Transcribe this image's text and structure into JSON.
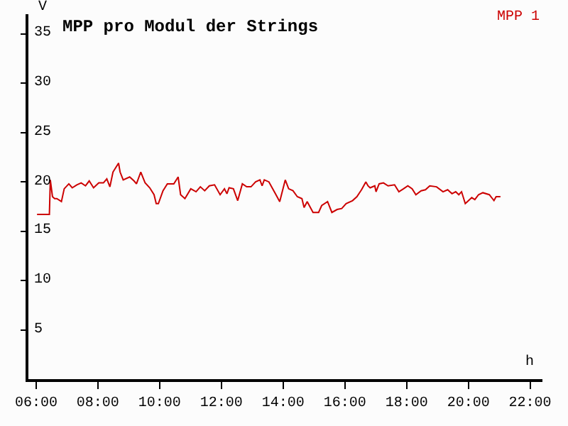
{
  "chart_data": {
    "type": "line",
    "title": "MPP pro Modul der Strings",
    "xlabel": "h",
    "ylabel": "V",
    "xlim": [
      5.75,
      22.4
    ],
    "ylim": [
      0,
      37
    ],
    "xticks": [
      {
        "value": 6,
        "label": "06:00"
      },
      {
        "value": 8,
        "label": "08:00"
      },
      {
        "value": 10,
        "label": "10:00"
      },
      {
        "value": 12,
        "label": "12:00"
      },
      {
        "value": 14,
        "label": "14:00"
      },
      {
        "value": 16,
        "label": "16:00"
      },
      {
        "value": 18,
        "label": "18:00"
      },
      {
        "value": 20,
        "label": "20:00"
      },
      {
        "value": 22,
        "label": "22:00"
      }
    ],
    "yticks": [
      5,
      10,
      15,
      20,
      25,
      30,
      35
    ],
    "legend": "top right",
    "marker": "none",
    "line_style": "solid",
    "series": [
      {
        "name": "MPP 1",
        "color": "#cc0000",
        "x": [
          6.03,
          6.43,
          6.46,
          6.53,
          6.6,
          6.67,
          6.82,
          6.91,
          7.06,
          7.17,
          7.32,
          7.46,
          7.6,
          7.72,
          7.86,
          8.03,
          8.18,
          8.29,
          8.39,
          8.49,
          8.57,
          8.67,
          8.72,
          8.82,
          9.03,
          9.17,
          9.25,
          9.39,
          9.53,
          9.68,
          9.82,
          9.89,
          9.96,
          10.11,
          10.25,
          10.46,
          10.6,
          10.68,
          10.82,
          11.01,
          11.18,
          11.32,
          11.46,
          11.61,
          11.78,
          11.96,
          12.1,
          12.18,
          12.25,
          12.39,
          12.53,
          12.68,
          12.82,
          12.96,
          13.11,
          13.25,
          13.32,
          13.39,
          13.54,
          13.75,
          13.89,
          14.07,
          14.18,
          14.32,
          14.46,
          14.61,
          14.68,
          14.78,
          14.97,
          15.15,
          15.25,
          15.44,
          15.58,
          15.75,
          15.9,
          16.04,
          16.25,
          16.39,
          16.54,
          16.68,
          16.75,
          16.82,
          16.97,
          17.01,
          17.11,
          17.25,
          17.4,
          17.61,
          17.75,
          17.9,
          18.04,
          18.18,
          18.3,
          18.47,
          18.61,
          18.75,
          18.97,
          19.18,
          19.33,
          19.47,
          19.59,
          19.69,
          19.78,
          19.9,
          19.97,
          20.11,
          20.21,
          20.33,
          20.47,
          20.68,
          20.83,
          20.9,
          21.04
        ],
        "values": [
          16.7,
          16.7,
          20.2,
          18.5,
          18.3,
          18.3,
          18.0,
          19.3,
          19.8,
          19.4,
          19.7,
          19.9,
          19.6,
          20.1,
          19.4,
          19.9,
          19.9,
          20.3,
          19.5,
          21.0,
          21.4,
          21.9,
          21.0,
          20.2,
          20.5,
          20.1,
          19.8,
          21.0,
          19.9,
          19.4,
          18.7,
          17.8,
          17.8,
          19.1,
          19.8,
          19.8,
          20.5,
          18.7,
          18.3,
          19.3,
          19.0,
          19.5,
          19.1,
          19.6,
          19.7,
          18.7,
          19.3,
          18.8,
          19.4,
          19.3,
          18.1,
          19.8,
          19.5,
          19.5,
          20.0,
          20.2,
          19.6,
          20.2,
          20.0,
          18.8,
          18.0,
          20.2,
          19.3,
          19.1,
          18.5,
          18.3,
          17.4,
          18.0,
          16.9,
          16.9,
          17.6,
          18.0,
          16.9,
          17.2,
          17.3,
          17.8,
          18.1,
          18.5,
          19.2,
          20.0,
          19.6,
          19.4,
          19.6,
          19.0,
          19.8,
          19.9,
          19.6,
          19.7,
          19.0,
          19.3,
          19.6,
          19.3,
          18.7,
          19.1,
          19.2,
          19.6,
          19.5,
          19.0,
          19.2,
          18.8,
          19.0,
          18.7,
          19.0,
          17.8,
          18.0,
          18.4,
          18.2,
          18.7,
          18.9,
          18.7,
          18.1,
          18.5,
          18.5
        ]
      }
    ]
  }
}
